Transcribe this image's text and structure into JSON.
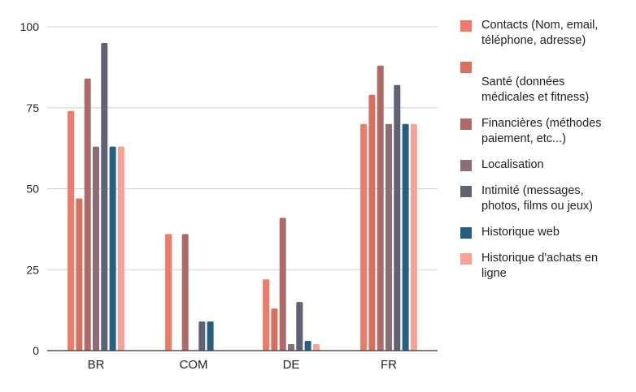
{
  "chart_data": {
    "type": "bar",
    "categories": [
      "BR",
      "COM",
      "DE",
      "FR"
    ],
    "ylim": [
      0,
      100
    ],
    "yticks": [
      0,
      25,
      50,
      75,
      100
    ],
    "grid": true,
    "legend_position": "right",
    "series": [
      {
        "name": "Contacts (Nom, email, téléphone, adresse)",
        "color": "#f07a68",
        "values": [
          74,
          36,
          22,
          70
        ]
      },
      {
        "name": "Santé (données médicales et fitness)",
        "color": "#d9705f",
        "values": [
          47,
          0,
          13,
          79
        ]
      },
      {
        "name": "Financières (méthodes paiement, etc...)",
        "color": "#b06a66",
        "values": [
          84,
          36,
          41,
          88
        ]
      },
      {
        "name": "Localisation",
        "color": "#8d6e76",
        "values": [
          63,
          0,
          2,
          70
        ]
      },
      {
        "name": "Intimité (messages, photos, films ou jeux)",
        "color": "#5f6270",
        "values": [
          95,
          9,
          15,
          82
        ]
      },
      {
        "name": "Historique web",
        "color": "#245f80",
        "values": [
          63,
          9,
          3,
          70
        ]
      },
      {
        "name": "Historique d'achats en ligne",
        "color": "#f7a295",
        "values": [
          63,
          0,
          2,
          70
        ]
      }
    ]
  }
}
